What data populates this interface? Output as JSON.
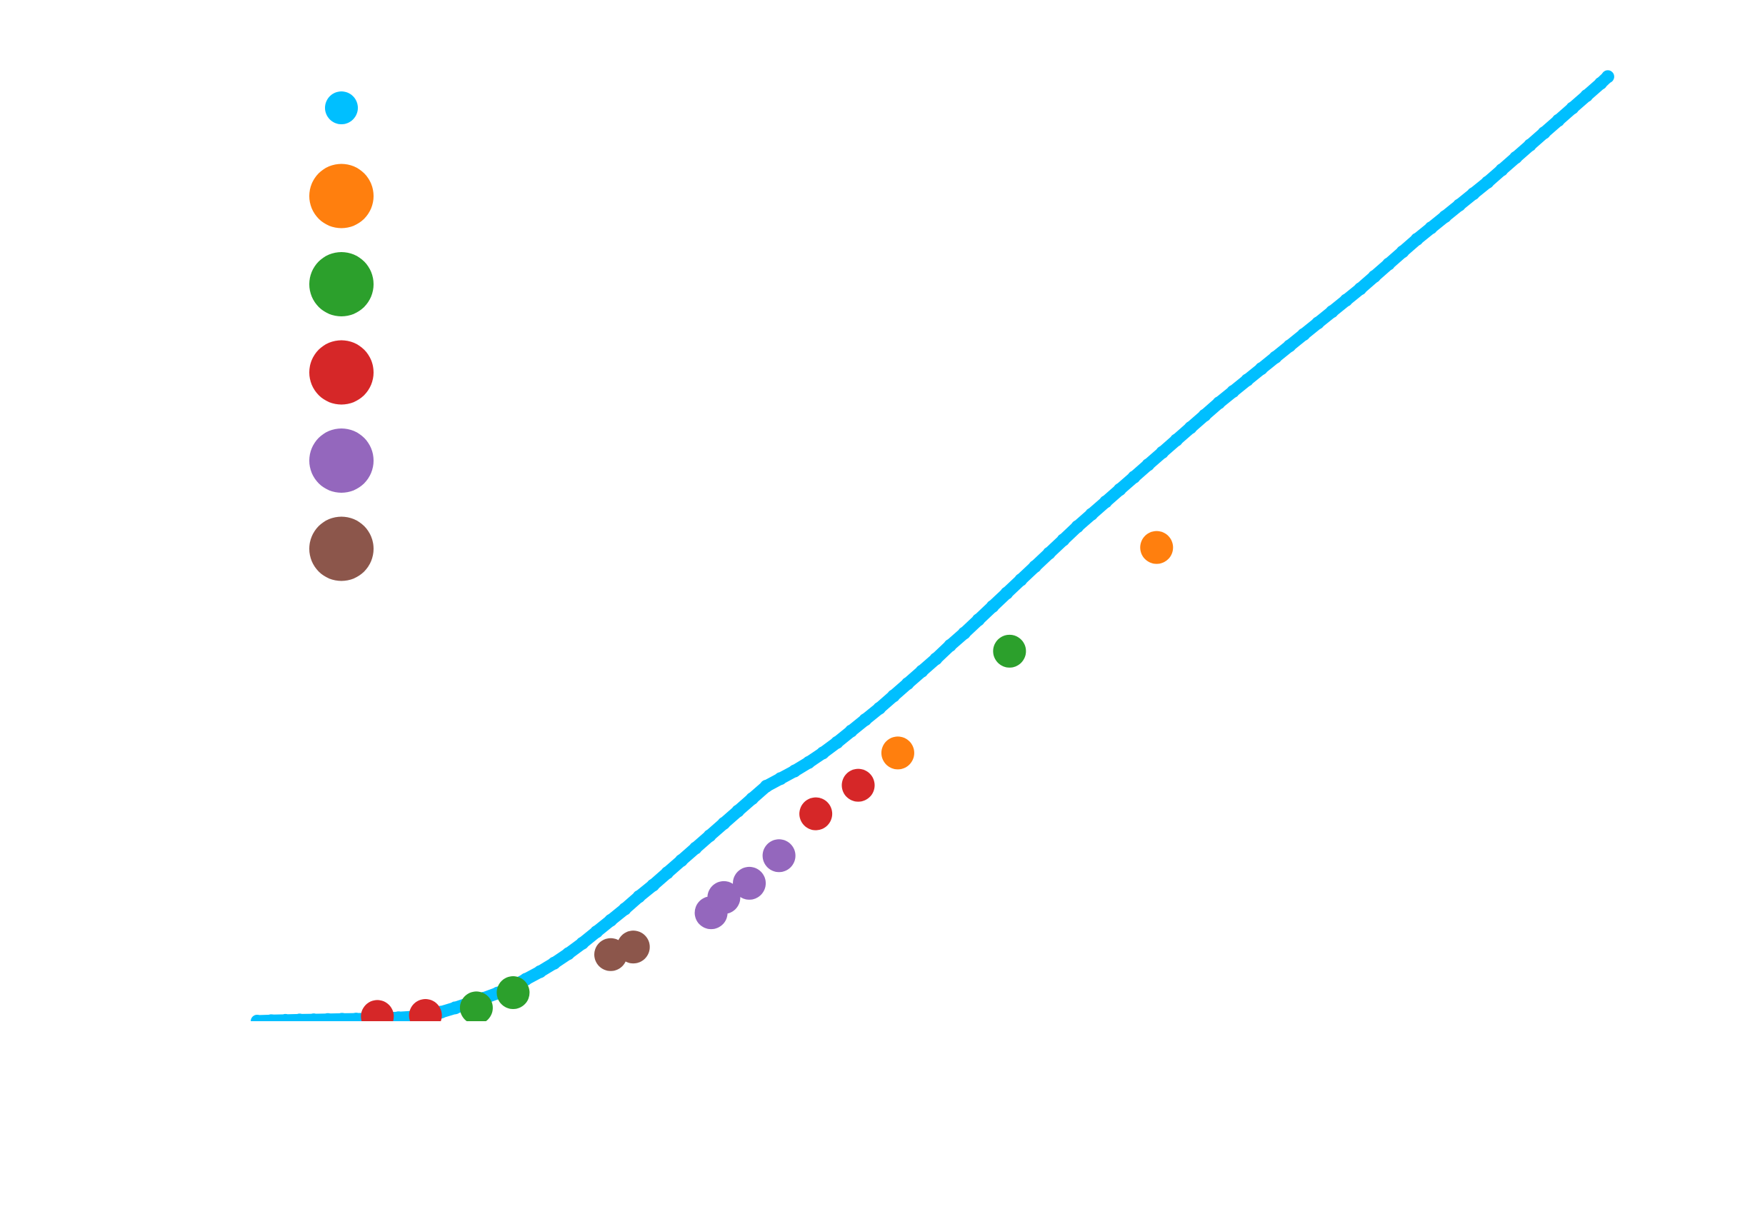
{
  "colors": {
    "background": "#ffffff",
    "series_curve": "#00bfff",
    "series_orange": "#ff7f0e",
    "series_green": "#2ca02c",
    "series_red": "#d62728",
    "series_purple": "#9467bd",
    "series_brown": "#8c564b"
  },
  "chart_data": {
    "type": "scatter",
    "title": "",
    "xlabel": "",
    "ylabel": "",
    "xlim": [
      0,
      100
    ],
    "ylim": [
      0,
      100
    ],
    "grid": false,
    "axes_visible": false,
    "legend_position": "top-left",
    "legend_labels_visible": false,
    "series": [
      {
        "color": "#00bfff",
        "marker": "small-dot",
        "points": [
          [
            0,
            0
          ],
          [
            1,
            0.05
          ],
          [
            2,
            0.08
          ],
          [
            3,
            0.12
          ],
          [
            4,
            0.14
          ],
          [
            5,
            0.17
          ],
          [
            6,
            0.2
          ],
          [
            7,
            0.22
          ],
          [
            8,
            0.25
          ],
          [
            9,
            0.3
          ],
          [
            10,
            0.36
          ],
          [
            11,
            0.45
          ],
          [
            12,
            0.6
          ],
          [
            13,
            0.95
          ],
          [
            14,
            1.4
          ],
          [
            15,
            1.9
          ],
          [
            16,
            2.4
          ],
          [
            17,
            2.95
          ],
          [
            18,
            3.6
          ],
          [
            19,
            4.4
          ],
          [
            20,
            5.2
          ],
          [
            21,
            6.1
          ],
          [
            22,
            7.1
          ],
          [
            23,
            8.2
          ],
          [
            24,
            9.4
          ],
          [
            25,
            10.6
          ],
          [
            26,
            11.8
          ],
          [
            27,
            13.1
          ],
          [
            28,
            14.3
          ],
          [
            29,
            15.6
          ],
          [
            30,
            16.9
          ],
          [
            31,
            18.2
          ],
          [
            32,
            19.5
          ],
          [
            33,
            20.8
          ],
          [
            34,
            22.1
          ],
          [
            35,
            23.4
          ],
          [
            36,
            24.7
          ],
          [
            37,
            25.5
          ],
          [
            38,
            26.3
          ],
          [
            39,
            27.2
          ],
          [
            40,
            28.2
          ],
          [
            41,
            29.3
          ],
          [
            42,
            30.5
          ],
          [
            43,
            31.7
          ],
          [
            44,
            32.9
          ],
          [
            45,
            34.2
          ],
          [
            46,
            35.5
          ],
          [
            47,
            36.8
          ],
          [
            48,
            38.1
          ],
          [
            49,
            39.5
          ],
          [
            50,
            40.8
          ],
          [
            51,
            42.2
          ],
          [
            52,
            43.6
          ],
          [
            53,
            45.0
          ],
          [
            54,
            46.4
          ],
          [
            55,
            47.8
          ],
          [
            56,
            49.2
          ],
          [
            57,
            50.6
          ],
          [
            58,
            52.0
          ],
          [
            59,
            53.3
          ],
          [
            60,
            54.6
          ],
          [
            61,
            55.9
          ],
          [
            62,
            57.2
          ],
          [
            63,
            58.5
          ],
          [
            64,
            59.8
          ],
          [
            65,
            61.1
          ],
          [
            66,
            62.4
          ],
          [
            67,
            63.7
          ],
          [
            68,
            65.0
          ],
          [
            69,
            66.2
          ],
          [
            70,
            67.4
          ],
          [
            71,
            68.6
          ],
          [
            72,
            69.8
          ],
          [
            73,
            71.0
          ],
          [
            74,
            72.2
          ],
          [
            75,
            73.4
          ],
          [
            76,
            74.6
          ],
          [
            77,
            75.8
          ],
          [
            78,
            77.0
          ],
          [
            79,
            78.3
          ],
          [
            80,
            79.6
          ],
          [
            81,
            80.9
          ],
          [
            82,
            82.2
          ],
          [
            83,
            83.4
          ],
          [
            84,
            84.6
          ],
          [
            85,
            85.8
          ],
          [
            86,
            87.0
          ],
          [
            87,
            88.2
          ],
          [
            88,
            89.5
          ],
          [
            89,
            90.8
          ],
          [
            90,
            92.1
          ],
          [
            91,
            93.4
          ],
          [
            92,
            94.7
          ],
          [
            93,
            96.0
          ],
          [
            94,
            97.3
          ],
          [
            95,
            98.6
          ],
          [
            95.5,
            99.3
          ]
        ]
      },
      {
        "color": "#ff7f0e",
        "marker": "large-dot",
        "points": [
          [
            45.3,
            28.2
          ],
          [
            63.6,
            49.8
          ]
        ]
      },
      {
        "color": "#2ca02c",
        "marker": "large-dot",
        "points": [
          [
            15.5,
            1.4
          ],
          [
            18.1,
            3.0
          ],
          [
            53.2,
            38.9
          ]
        ]
      },
      {
        "color": "#d62728",
        "marker": "large-dot",
        "points": [
          [
            8.5,
            0.5
          ],
          [
            11.9,
            0.6
          ],
          [
            39.5,
            21.8
          ],
          [
            42.5,
            24.8
          ]
        ]
      },
      {
        "color": "#9467bd",
        "marker": "large-dot",
        "points": [
          [
            32.1,
            11.4
          ],
          [
            33.0,
            13.0
          ],
          [
            34.8,
            14.5
          ],
          [
            36.9,
            17.4
          ]
        ]
      },
      {
        "color": "#8c564b",
        "marker": "large-dot",
        "points": [
          [
            25.0,
            7.0
          ],
          [
            26.6,
            7.8
          ]
        ]
      }
    ]
  }
}
